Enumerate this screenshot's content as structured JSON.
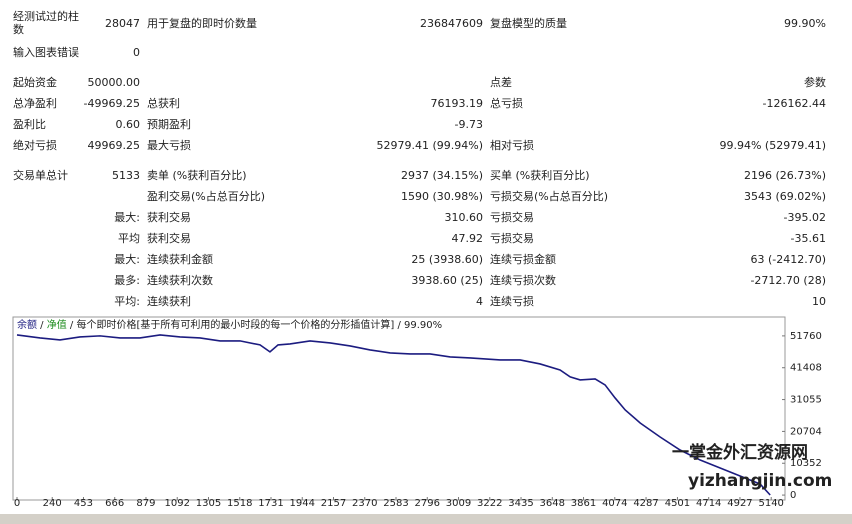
{
  "report": {
    "rows": [
      {
        "c1": {
          "label": "经测试过的柱数",
          "value": "28047"
        },
        "c2": {
          "label": "用于复盘的即时价数量",
          "value": "236847609"
        },
        "c3": {
          "label": "复盘模型的质量",
          "value": "99.90%"
        }
      },
      {
        "c1": {
          "label": "输入图表错误",
          "value": "0"
        }
      },
      {
        "c1": {
          "label": "起始资金",
          "value": "50000.00"
        },
        "c3": {
          "label": "点差",
          "value": "参数"
        }
      },
      {
        "c1": {
          "label": "总净盈利",
          "value": "-49969.25"
        },
        "c2": {
          "label": "总获利",
          "value": "76193.19"
        },
        "c3": {
          "label": "总亏损",
          "value": "-126162.44"
        }
      },
      {
        "c1": {
          "label": "盈利比",
          "value": "0.60"
        },
        "c2": {
          "label": "预期盈利",
          "value": "-9.73"
        }
      },
      {
        "c1": {
          "label": "绝对亏损",
          "value": "49969.25"
        },
        "c2": {
          "label": "最大亏损",
          "value": "52979.41 (99.94%)"
        },
        "c3": {
          "label": "相对亏损",
          "value": "99.94% (52979.41)"
        }
      },
      {
        "c1": {
          "label": "交易单总计",
          "value": "5133"
        },
        "c2": {
          "label": "卖单 (%获利百分比)",
          "value": "2937 (34.15%)"
        },
        "c3": {
          "label": "买单 (%获利百分比)",
          "value": "2196 (26.73%)"
        }
      },
      {
        "c2": {
          "label": "盈利交易(%占总百分比)",
          "value": "1590 (30.98%)"
        },
        "c3": {
          "label": "亏损交易(%占总百分比)",
          "value": "3543 (69.02%)"
        }
      },
      {
        "c1": {
          "label": "最大:"
        },
        "c2": {
          "label": "获利交易",
          "value": "310.60"
        },
        "c3": {
          "label": "亏损交易",
          "value": "-395.02"
        }
      },
      {
        "c1": {
          "label": "平均"
        },
        "c2": {
          "label": "获利交易",
          "value": "47.92"
        },
        "c3": {
          "label": "亏损交易",
          "value": "-35.61"
        }
      },
      {
        "c1": {
          "label": "最大:"
        },
        "c2": {
          "label": "连续获利金额",
          "value": "25 (3938.60)"
        },
        "c3": {
          "label": "连续亏损金额",
          "value": "63 (-2412.70)"
        }
      },
      {
        "c1": {
          "label": "最多:"
        },
        "c2": {
          "label": "连续获利次数",
          "value": "3938.60 (25)"
        },
        "c3": {
          "label": "连续亏损次数",
          "value": "-2712.70 (28)"
        }
      },
      {
        "c1": {
          "label": "平均:"
        },
        "c2": {
          "label": "连续获利",
          "value": "4"
        },
        "c3": {
          "label": "连续亏损",
          "value": "10"
        }
      }
    ]
  },
  "chart_data": {
    "type": "line",
    "subtitle_parts": [
      "净值",
      "每个即时价格[基于所有可利用的最小时段的每一个价格的分形插值计算]",
      "99.90%"
    ],
    "x": [
      0,
      157,
      293,
      429,
      566,
      702,
      838,
      975,
      1111,
      1247,
      1384,
      1520,
      1656,
      1724,
      1779,
      1861,
      1997,
      2134,
      2270,
      2406,
      2543,
      2679,
      2815,
      2952,
      3088,
      3292,
      3429,
      3565,
      3701,
      3770,
      3838,
      3940,
      4008,
      4076,
      4145,
      4247,
      4383,
      4519,
      4656,
      4792,
      4928,
      5065,
      5133
    ],
    "series": [
      {
        "name": "余额",
        "color": "#1c1c80",
        "values": [
          52080,
          51100,
          50460,
          51430,
          51760,
          51100,
          51100,
          52080,
          51430,
          51100,
          50130,
          50130,
          48830,
          46550,
          48830,
          49150,
          50130,
          49480,
          48500,
          47200,
          46220,
          45900,
          45900,
          44920,
          44600,
          43950,
          43950,
          42640,
          40690,
          38410,
          37440,
          37760,
          35810,
          31580,
          27670,
          23440,
          18880,
          14650,
          11390,
          8790,
          6190,
          3580,
          31
        ]
      }
    ],
    "xlim": [
      0,
      5234
    ],
    "ylim": [
      -1600,
      57900
    ],
    "xticks": [
      0,
      240,
      453,
      666,
      879,
      1092,
      1305,
      1518,
      1731,
      1944,
      2157,
      2370,
      2583,
      2796,
      3009,
      3222,
      3435,
      3648,
      3861,
      4074,
      4287,
      4501,
      4714,
      4927,
      5140
    ],
    "yticks": [
      51760,
      41408,
      31055,
      20704,
      10352,
      0
    ],
    "watermark": [
      "一掌金外汇资源网",
      "yizhangjin.com"
    ]
  }
}
